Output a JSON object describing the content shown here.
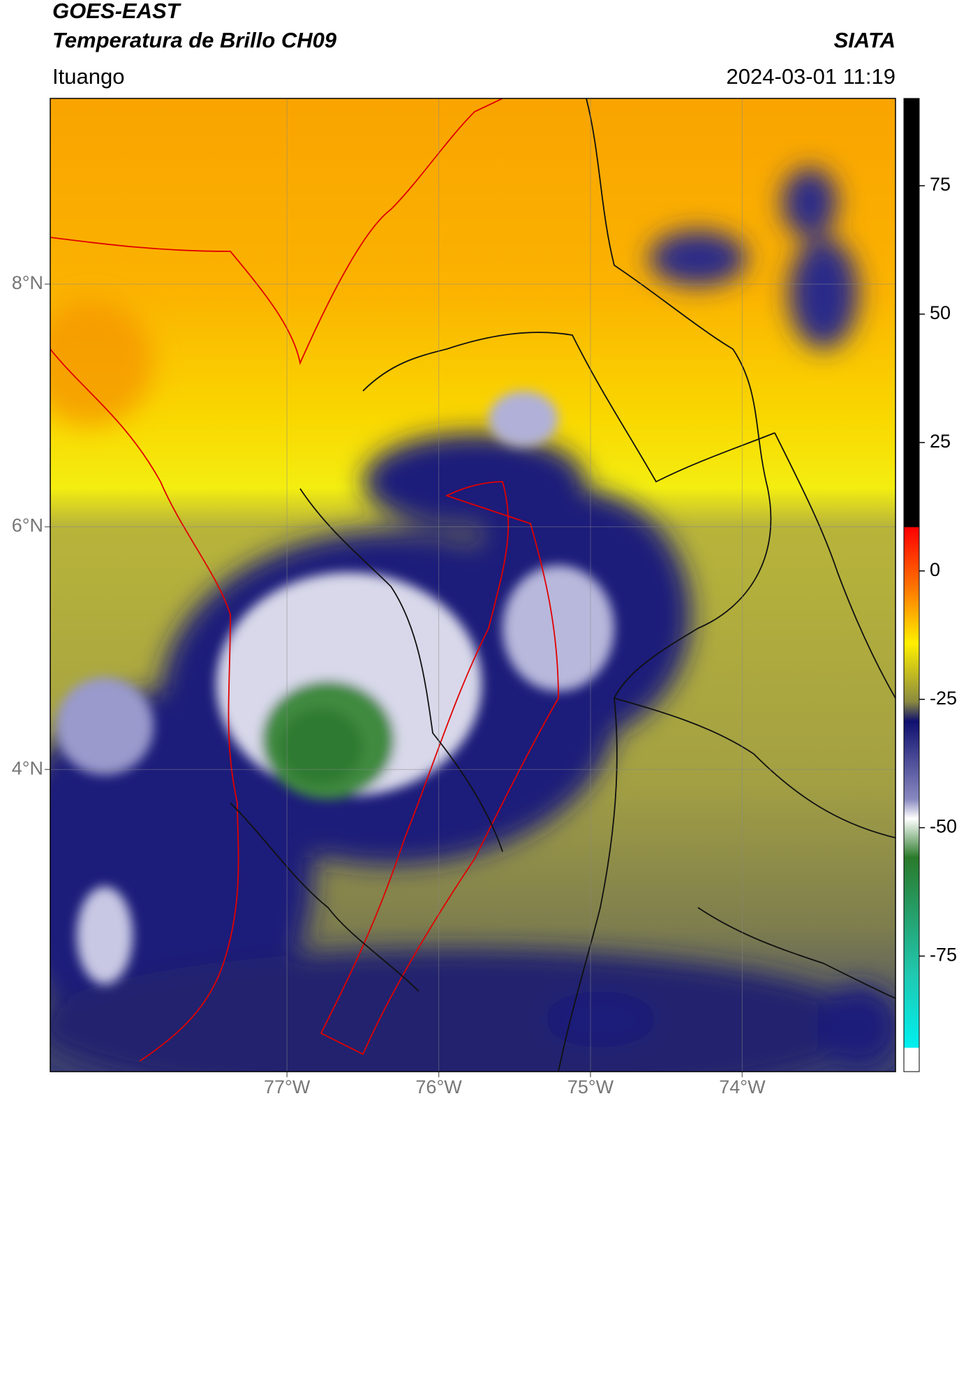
{
  "header": {
    "title_line1": "GOES-EAST",
    "title_line2": "Temperatura de Brillo CH09",
    "brand": "SIATA",
    "place": "Ituango",
    "datetime": "2024-03-01 11:19"
  },
  "map": {
    "xlim": [
      -78.56,
      -72.99
    ],
    "ylim": [
      1.51,
      9.53
    ],
    "xticks": [
      {
        "value": -77,
        "label": "77°W"
      },
      {
        "value": -76,
        "label": "76°W"
      },
      {
        "value": -75,
        "label": "75°W"
      },
      {
        "value": -74,
        "label": "74°W"
      }
    ],
    "yticks": [
      {
        "value": 8,
        "label": "8°N"
      },
      {
        "value": 6,
        "label": "6°N"
      },
      {
        "value": 4,
        "label": "4°N"
      }
    ]
  },
  "colorbar": {
    "lim": [
      -97.5,
      92
    ],
    "ticks": [
      75,
      50,
      25,
      0,
      -25,
      -50,
      -75
    ]
  }
}
